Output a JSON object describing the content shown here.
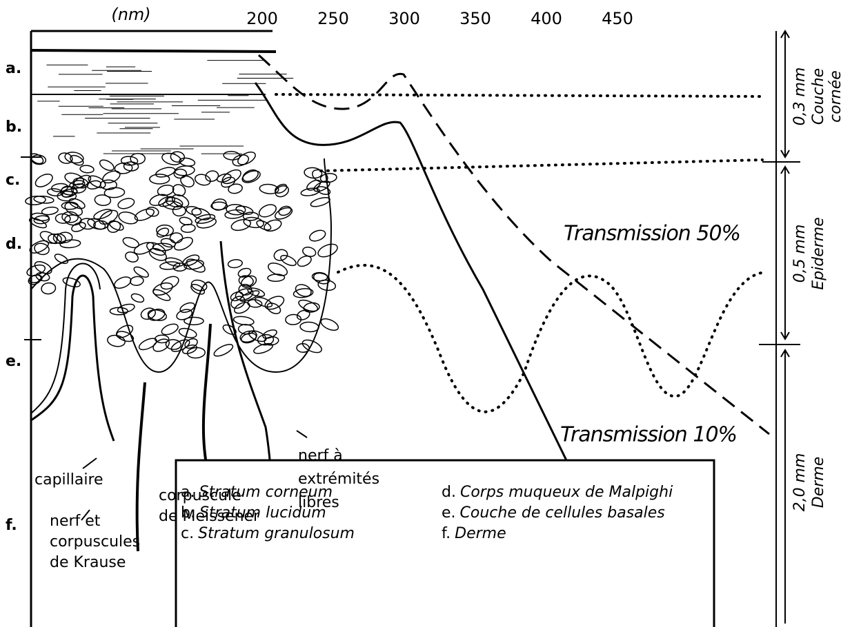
{
  "axis": {
    "unit": "(nm)",
    "ticks": [
      200,
      250,
      300,
      350,
      400,
      450
    ]
  },
  "layers": [
    "a.",
    "b.",
    "c.",
    "d.",
    "e.",
    "f."
  ],
  "depth_scale": [
    {
      "size": "0,3 mm",
      "name": "Couche",
      "name2": "cornée"
    },
    {
      "size": "0,5 mm",
      "name": "Epiderme"
    },
    {
      "size": "2,0 mm",
      "name": "Derme"
    }
  ],
  "curve_labels": [
    "Transmission 50%",
    "Transmission 10%"
  ],
  "annotations": {
    "capillaire": "capillaire",
    "krause": [
      "nerf et",
      "corpuscules",
      "de Krause"
    ],
    "meissener": [
      "corpuscule",
      "de Meissener"
    ],
    "nerf": [
      "nerf à",
      "extrémités",
      "libres"
    ]
  },
  "legend": [
    {
      "letter": "a.",
      "name": "Stratum corneum"
    },
    {
      "letter": "b.",
      "name": "Stratum lucidum"
    },
    {
      "letter": "c.",
      "name": "Stratum granulosum"
    },
    {
      "letter": "d.",
      "name": "Corps muqueux de Malpighi"
    },
    {
      "letter": "e.",
      "name": "Couche de cellules basales"
    },
    {
      "letter": "f.",
      "name": "Derme"
    }
  ]
}
